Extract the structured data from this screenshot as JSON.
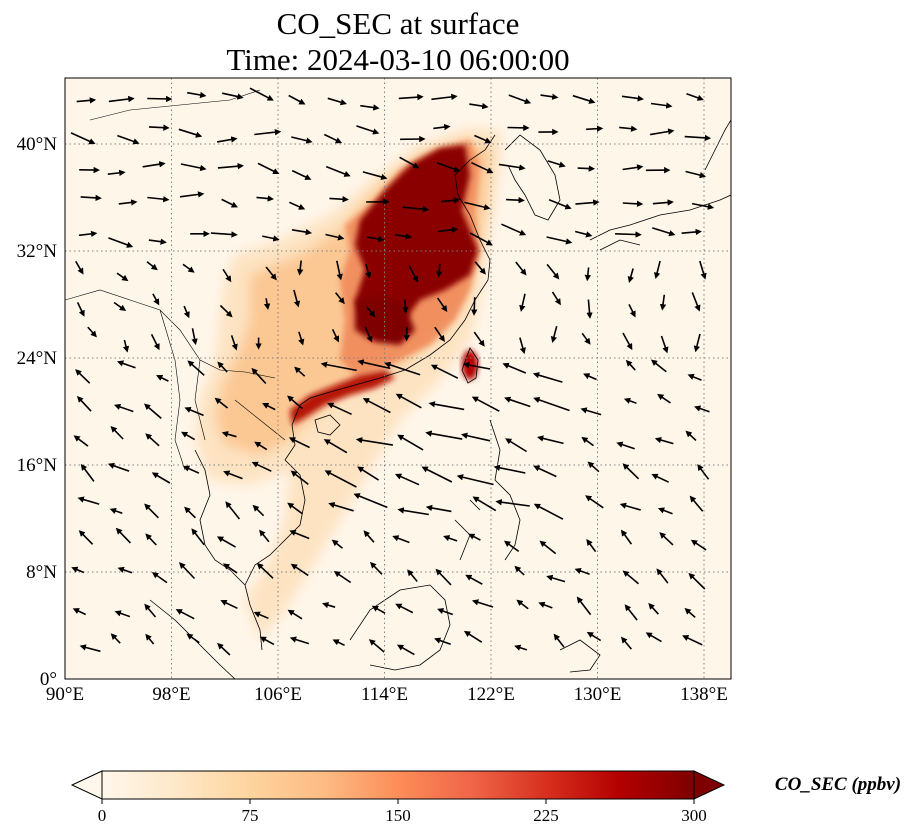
{
  "title": {
    "line1": "CO_SEC at surface",
    "line2": "Time: 2024-03-10 06:00:00"
  },
  "map": {
    "lon_range": [
      90,
      140
    ],
    "lat_range": [
      0,
      40
    ],
    "x_ticks": [
      {
        "value": 90,
        "label": "90°E"
      },
      {
        "value": 98,
        "label": "98°E"
      },
      {
        "value": 106,
        "label": "106°E"
      },
      {
        "value": 114,
        "label": "114°E"
      },
      {
        "value": 122,
        "label": "122°E"
      },
      {
        "value": 130,
        "label": "130°E"
      },
      {
        "value": 138,
        "label": "138°E"
      }
    ],
    "y_ticks": [
      {
        "value": 0,
        "label": "0°"
      },
      {
        "value": 8,
        "label": "8°N"
      },
      {
        "value": 16,
        "label": "16°N"
      },
      {
        "value": 24,
        "label": "24°N"
      },
      {
        "value": 32,
        "label": "32°N"
      },
      {
        "value": 40,
        "label": "40°N"
      }
    ],
    "gridlines": true,
    "background_color": "#fff6ea",
    "coastline_color": "#000000"
  },
  "colorbar": {
    "label": "CO_SEC (ppbv)",
    "colormap": "OrRd",
    "range": [
      0,
      300
    ],
    "ticks": [
      {
        "value": 0,
        "label": "0"
      },
      {
        "value": 75,
        "label": "75"
      },
      {
        "value": 150,
        "label": "150"
      },
      {
        "value": 225,
        "label": "225"
      },
      {
        "value": 300,
        "label": "300"
      }
    ],
    "extend": "both",
    "colors": [
      "#fff7ec",
      "#fee8c8",
      "#fdd49e",
      "#fdbb84",
      "#fc8d59",
      "#ef6548",
      "#d7301f",
      "#b30000",
      "#7f0000"
    ]
  }
}
